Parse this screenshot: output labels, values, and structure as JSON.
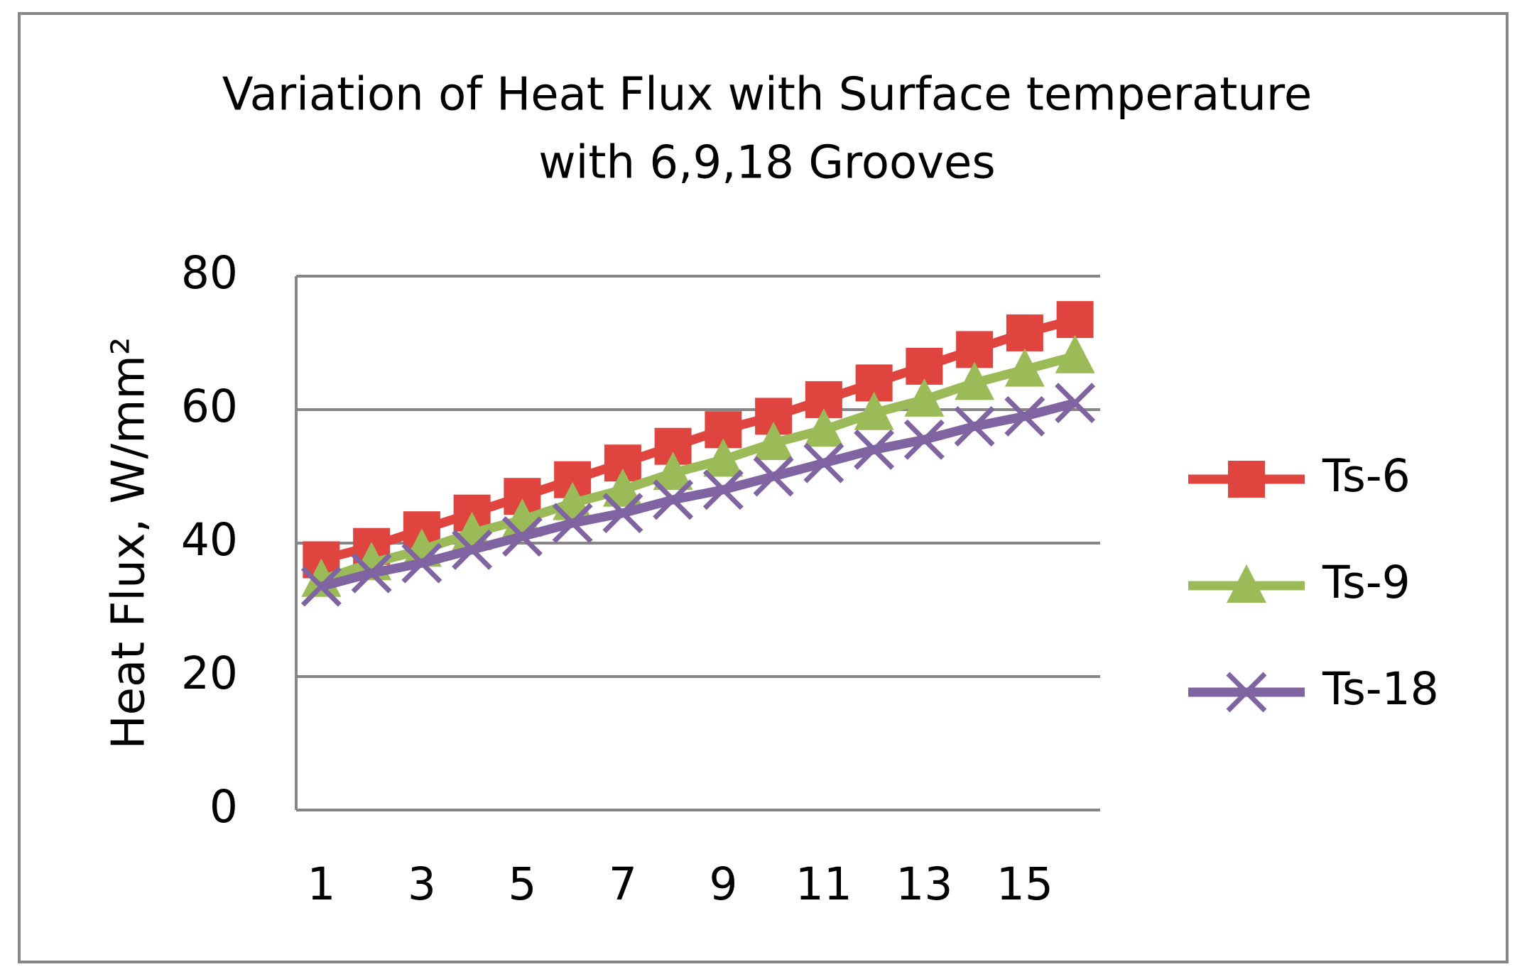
{
  "chart_data": {
    "type": "line",
    "title": [
      "Variation of Heat Flux with Surface temperature",
      "with 6,9,18 Grooves"
    ],
    "y_label": "Heat Flux, W/mm²",
    "categories": [
      "1",
      null,
      "3",
      null,
      "5",
      null,
      "7",
      null,
      "9",
      null,
      "11",
      null,
      "13",
      null,
      "15",
      null
    ],
    "ylim": [
      0,
      80
    ],
    "yticks": [
      0,
      20,
      40,
      60,
      80
    ],
    "grid": true,
    "legend": "right",
    "series": [
      {
        "name": "Ts-6",
        "color": "#e0443e",
        "marker": "square",
        "values": [
          37.5,
          39.5,
          42,
          44.5,
          47,
          49.5,
          52,
          54.5,
          57,
          59,
          61.5,
          64,
          66.5,
          69,
          71.5,
          73.5
        ]
      },
      {
        "name": "Ts-9",
        "color": "#9bbb59",
        "marker": "triangle",
        "values": [
          34.5,
          37,
          39,
          41.5,
          43.5,
          46,
          48,
          50.5,
          52.5,
          55,
          57,
          59.5,
          61.5,
          64,
          66,
          68
        ]
      },
      {
        "name": "Ts-18",
        "color": "#8064a2",
        "marker": "x",
        "values": [
          33.5,
          35.5,
          37,
          39,
          41,
          43,
          44.5,
          46.5,
          48,
          50,
          52,
          54,
          55.5,
          57.5,
          59,
          61
        ]
      }
    ]
  }
}
